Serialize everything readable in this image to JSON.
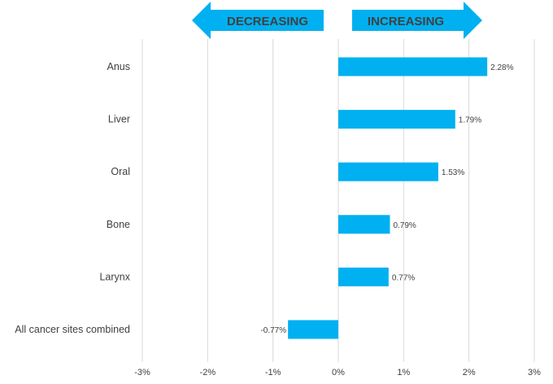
{
  "chart_data": {
    "type": "bar",
    "orientation": "horizontal",
    "categories": [
      "Anus",
      "Liver",
      "Oral",
      "Bone",
      "Larynx",
      "All cancer sites combined"
    ],
    "values": [
      2.28,
      1.79,
      1.53,
      0.79,
      0.77,
      -0.77
    ],
    "data_labels": [
      "2.28%",
      "1.79%",
      "1.53%",
      "0.79%",
      "0.77%",
      "-0.77%"
    ],
    "xlim": [
      -3,
      3
    ],
    "x_ticks": [
      -3,
      -2,
      -1,
      0,
      1,
      2,
      3
    ],
    "x_tick_labels": [
      "-3%",
      "-2%",
      "-1%",
      "0%",
      "1%",
      "2%",
      "3%"
    ],
    "title": "",
    "xlabel": "",
    "ylabel": "",
    "grid": true,
    "bar_color": "#00b0f0",
    "annotations": {
      "decreasing": "DECREASING",
      "increasing": "INCREASING",
      "arrow_color": "#00b0f0"
    }
  }
}
